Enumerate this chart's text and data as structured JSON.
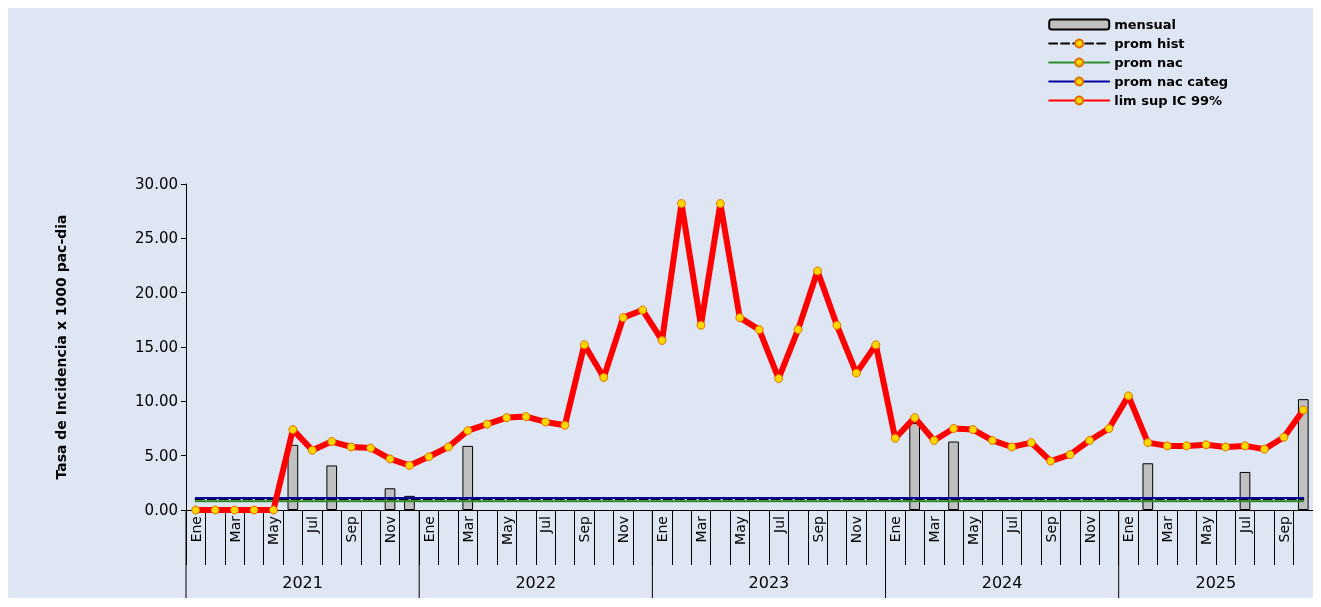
{
  "chart_data": {
    "type": "bar",
    "ylabel": "Tasa de Incidencia x 1000 pac-dia",
    "categories": [
      "Ene",
      null,
      "Mar",
      null,
      "May",
      null,
      "Jul",
      null,
      "Sep",
      null,
      "Nov",
      null,
      "Ene",
      null,
      "Mar",
      null,
      "May",
      null,
      "Jul",
      null,
      "Sep",
      null,
      "Nov",
      null,
      "Ene",
      null,
      "Mar",
      null,
      "May",
      null,
      "Jul",
      null,
      "Sep",
      null,
      "Nov",
      null,
      "Ene",
      null,
      "Mar",
      null,
      "May",
      null,
      "Jul",
      null,
      "Sep",
      null,
      "Nov",
      null,
      "Ene",
      null,
      "Mar",
      null,
      "May",
      null,
      "Jul",
      null,
      "Sep",
      null
    ],
    "series": [
      {
        "name": "mensual",
        "color": "#c0c0c0",
        "values": [
          null,
          null,
          null,
          null,
          null,
          6.0,
          null,
          4.1,
          null,
          null,
          2.0,
          1.3,
          null,
          null,
          5.9,
          null,
          null,
          null,
          null,
          null,
          null,
          null,
          null,
          null,
          null,
          null,
          null,
          null,
          null,
          null,
          null,
          null,
          null,
          null,
          null,
          null,
          null,
          8.0,
          null,
          6.3,
          null,
          null,
          null,
          null,
          null,
          null,
          null,
          null,
          null,
          4.3,
          null,
          null,
          null,
          null,
          3.5,
          null,
          null,
          10.2
        ]
      },
      {
        "name": "prom hist",
        "type": "line",
        "color": "#000000",
        "line_style": "dashed",
        "marker": "none",
        "values": [
          1.0,
          1.0,
          1.0,
          1.0,
          1.0,
          1.0,
          1.0,
          1.0,
          1.0,
          1.0,
          1.0,
          1.0,
          1.0,
          1.0,
          1.0,
          1.0,
          1.0,
          1.0,
          1.0,
          1.0,
          1.0,
          1.0,
          1.0,
          1.0,
          1.0,
          1.0,
          1.0,
          1.0,
          1.0,
          1.0,
          1.0,
          1.0,
          1.0,
          1.0,
          1.0,
          1.0,
          1.0,
          1.0,
          1.0,
          1.0,
          1.0,
          1.0,
          1.0,
          1.0,
          1.0,
          1.0,
          1.0,
          1.0,
          1.0,
          1.0,
          1.0,
          1.0,
          1.0,
          1.0,
          1.0,
          1.0,
          1.0,
          1.0
        ]
      },
      {
        "name": "prom nac",
        "type": "line",
        "color": "#2e8b2e",
        "line_style": "solid",
        "marker": "none",
        "values": [
          0.8,
          0.8,
          0.8,
          0.8,
          0.8,
          0.8,
          0.8,
          0.8,
          0.8,
          0.8,
          0.8,
          0.8,
          0.8,
          0.8,
          0.8,
          0.8,
          0.8,
          0.8,
          0.8,
          0.8,
          0.8,
          0.8,
          0.8,
          0.8,
          0.8,
          0.8,
          0.8,
          0.8,
          0.8,
          0.8,
          0.8,
          0.8,
          0.8,
          0.8,
          0.8,
          0.8,
          0.8,
          0.8,
          0.8,
          0.8,
          0.8,
          0.8,
          0.8,
          0.8,
          0.8,
          0.8,
          0.8,
          0.8,
          0.8,
          0.8,
          0.8,
          0.8,
          0.8,
          0.8,
          0.8,
          0.8,
          0.8,
          0.8
        ]
      },
      {
        "name": "prom nac categ",
        "type": "line",
        "color": "#0000a0",
        "line_style": "solid",
        "marker": "none",
        "values": [
          1.1,
          1.1,
          1.1,
          1.1,
          1.1,
          1.1,
          1.1,
          1.1,
          1.1,
          1.1,
          1.1,
          1.1,
          1.1,
          1.1,
          1.1,
          1.1,
          1.1,
          1.1,
          1.1,
          1.1,
          1.1,
          1.1,
          1.1,
          1.1,
          1.1,
          1.1,
          1.1,
          1.1,
          1.1,
          1.1,
          1.1,
          1.1,
          1.1,
          1.1,
          1.1,
          1.1,
          1.1,
          1.1,
          1.1,
          1.1,
          1.1,
          1.1,
          1.1,
          1.1,
          1.1,
          1.1,
          1.1,
          1.1,
          1.1,
          1.1,
          1.1,
          1.1,
          1.1,
          1.1,
          1.1,
          1.1,
          1.1,
          1.1
        ]
      },
      {
        "name": "lim sup IC 99%",
        "type": "line",
        "color": "#ff0000",
        "line_style": "solid",
        "marker": "circle",
        "values": [
          0,
          0,
          0,
          0,
          0,
          7.4,
          5.5,
          6.3,
          5.8,
          5.7,
          4.7,
          4.1,
          4.9,
          5.8,
          7.3,
          7.9,
          8.5,
          8.6,
          8.1,
          7.8,
          15.2,
          12.2,
          17.7,
          18.4,
          15.6,
          28.2,
          17.0,
          28.2,
          17.7,
          16.6,
          12.1,
          16.6,
          22.0,
          17.0,
          12.6,
          15.2,
          6.6,
          8.5,
          6.4,
          7.5,
          7.4,
          6.4,
          5.8,
          6.2,
          4.5,
          5.1,
          6.4,
          7.5,
          10.5,
          6.2,
          5.9,
          5.9,
          6.0,
          5.8,
          5.9,
          5.6,
          6.7,
          9.2
        ]
      }
    ],
    "ylim": [
      0,
      30
    ],
    "yticks": [
      {
        "value": 0,
        "label": "0.00"
      },
      {
        "value": 5,
        "label": "5.00"
      },
      {
        "value": 10,
        "label": "10.00"
      },
      {
        "value": 15,
        "label": "15.00"
      },
      {
        "value": 20,
        "label": "20.00"
      },
      {
        "value": 25,
        "label": "25.00"
      },
      {
        "value": 30,
        "label": "30.00"
      }
    ],
    "annotations": [
      "2021",
      "2022",
      "2023",
      "2024",
      "2025"
    ],
    "grid": false,
    "legend": "top right"
  }
}
